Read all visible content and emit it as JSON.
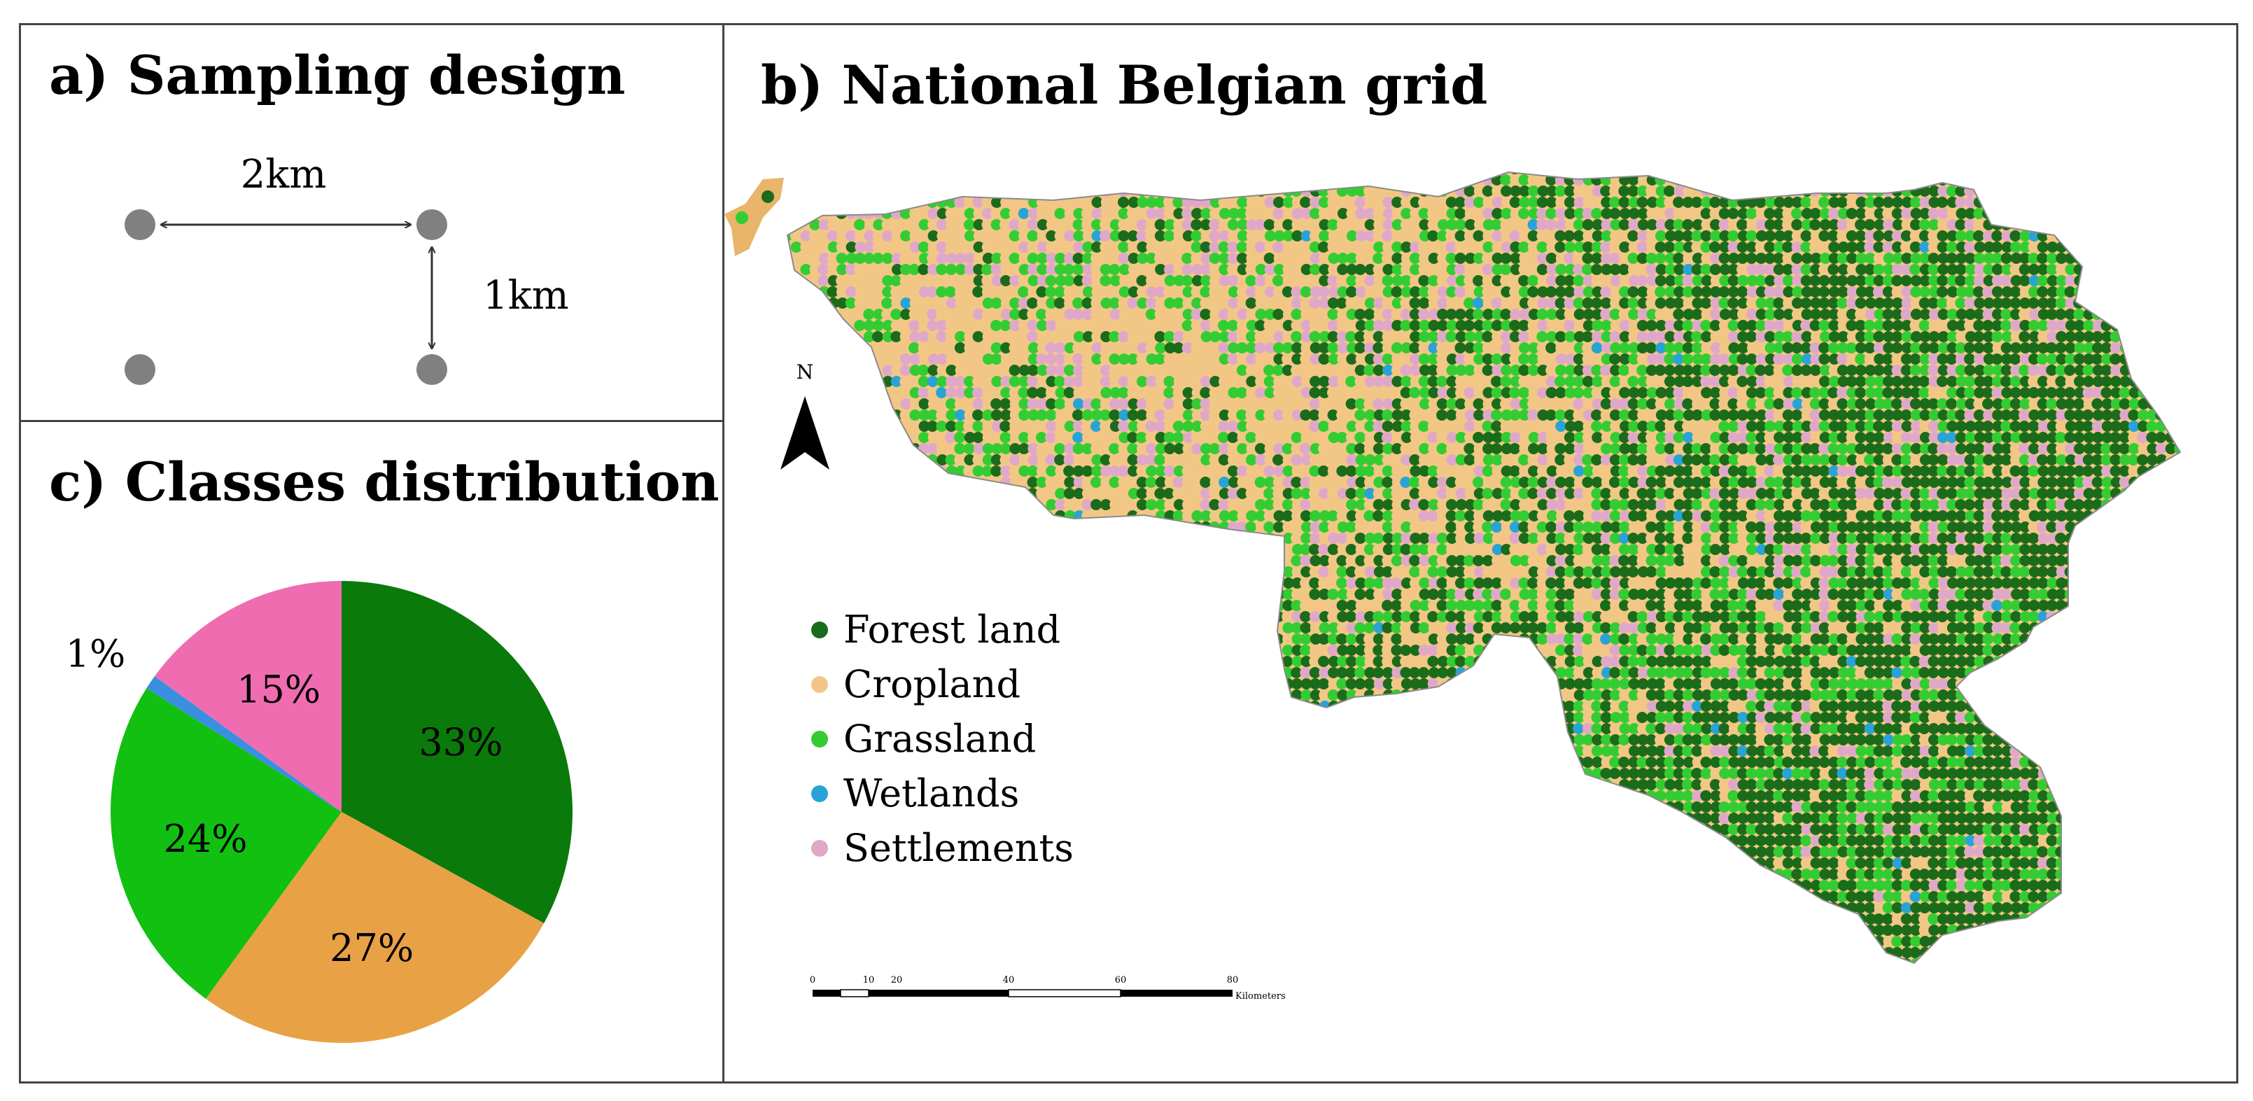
{
  "panels": {
    "a": {
      "title": "a) Sampling design",
      "distance_horizontal": "2km",
      "distance_vertical": "1km"
    },
    "b": {
      "title": "b) National Belgian grid",
      "north_label": "N",
      "scalebar": {
        "ticks": [
          "0",
          "10",
          "20",
          "40",
          "60",
          "80"
        ],
        "unit": "Kilometers"
      },
      "legend": [
        {
          "label": "Forest land",
          "color": "#1a6b1a"
        },
        {
          "label": "Cropland",
          "color": "#f2c785"
        },
        {
          "label": "Grassland",
          "color": "#33cc33"
        },
        {
          "label": "Wetlands",
          "color": "#29a3d6"
        },
        {
          "label": "Settlements",
          "color": "#e0a8c8"
        }
      ]
    },
    "c": {
      "title": "c) Classes distribution"
    }
  },
  "chart_data": {
    "type": "pie",
    "title": "c) Classes distribution",
    "slices": [
      {
        "label": "Forest land",
        "value": 33,
        "display": "33%",
        "color": "#0a7a0a"
      },
      {
        "label": "Cropland",
        "value": 27,
        "display": "27%",
        "color": "#e8a245"
      },
      {
        "label": "Grassland",
        "value": 24,
        "display": "24%",
        "color": "#11c011"
      },
      {
        "label": "Wetlands",
        "value": 1,
        "display": "1%",
        "color": "#3a8fe0"
      },
      {
        "label": "Settlements",
        "value": 15,
        "display": "15%",
        "color": "#f06cb0"
      }
    ]
  }
}
